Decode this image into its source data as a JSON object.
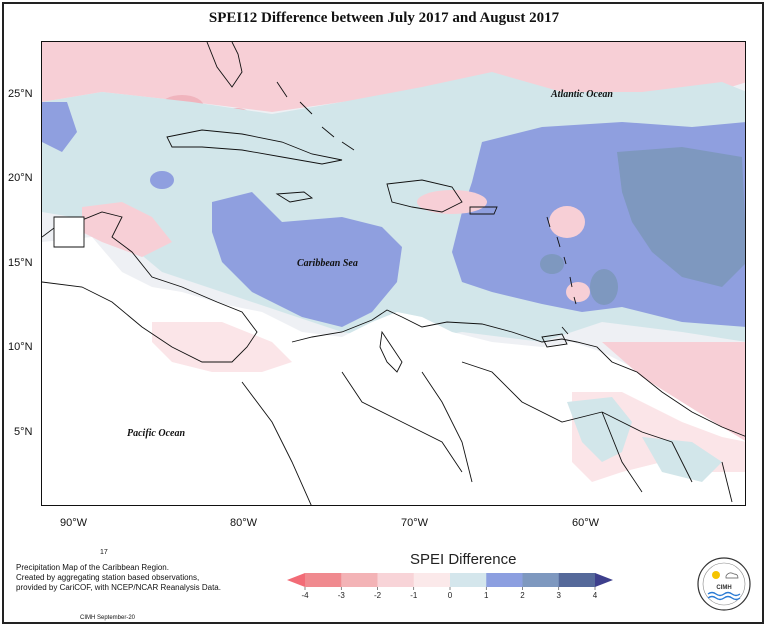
{
  "title": "SPEI12 Difference between July 2017 and August 2017",
  "axes": {
    "lat_labels": [
      "25°N",
      "20°N",
      "15°N",
      "10°N",
      "5°N"
    ],
    "lon_labels": [
      "90°W",
      "80°W",
      "70°W",
      "60°W"
    ]
  },
  "labels": {
    "atlantic": "Atlantic Ocean",
    "caribbean": "Caribbean Sea",
    "pacific": "Pacific Ocean"
  },
  "credits": {
    "page_number": "17",
    "line1": "Precipitation Map of the Caribbean Region.",
    "line2": "Created by aggregating station based observations,",
    "line3": "provided by CariCOF, with NCEP/NCAR Reanalysis Data.",
    "footer": "CIMH September-20"
  },
  "legend": {
    "title": "SPEI Difference",
    "ticks": [
      "-4",
      "-3",
      "-2",
      "-1",
      "0",
      "1",
      "2",
      "3",
      "4"
    ],
    "colors": [
      "#f08a8f",
      "#f3b3b6",
      "#f8d4d8",
      "#fbe9ea",
      "#d4e6ec",
      "#8c9fe0",
      "#7e98bf",
      "#55699a"
    ],
    "end_low": "#f26b76",
    "end_high": "#3d3f8c"
  },
  "logo": {
    "text": "CIMH"
  },
  "map_colors": {
    "pink_light": "#fbe5e8",
    "pink": "#f7cfd6",
    "pink_dark": "#f0b4bd",
    "neutral": "#eef0f4",
    "cyan": "#d2e6ea",
    "blue": "#8f9fdf",
    "slate": "#7e98bf"
  }
}
